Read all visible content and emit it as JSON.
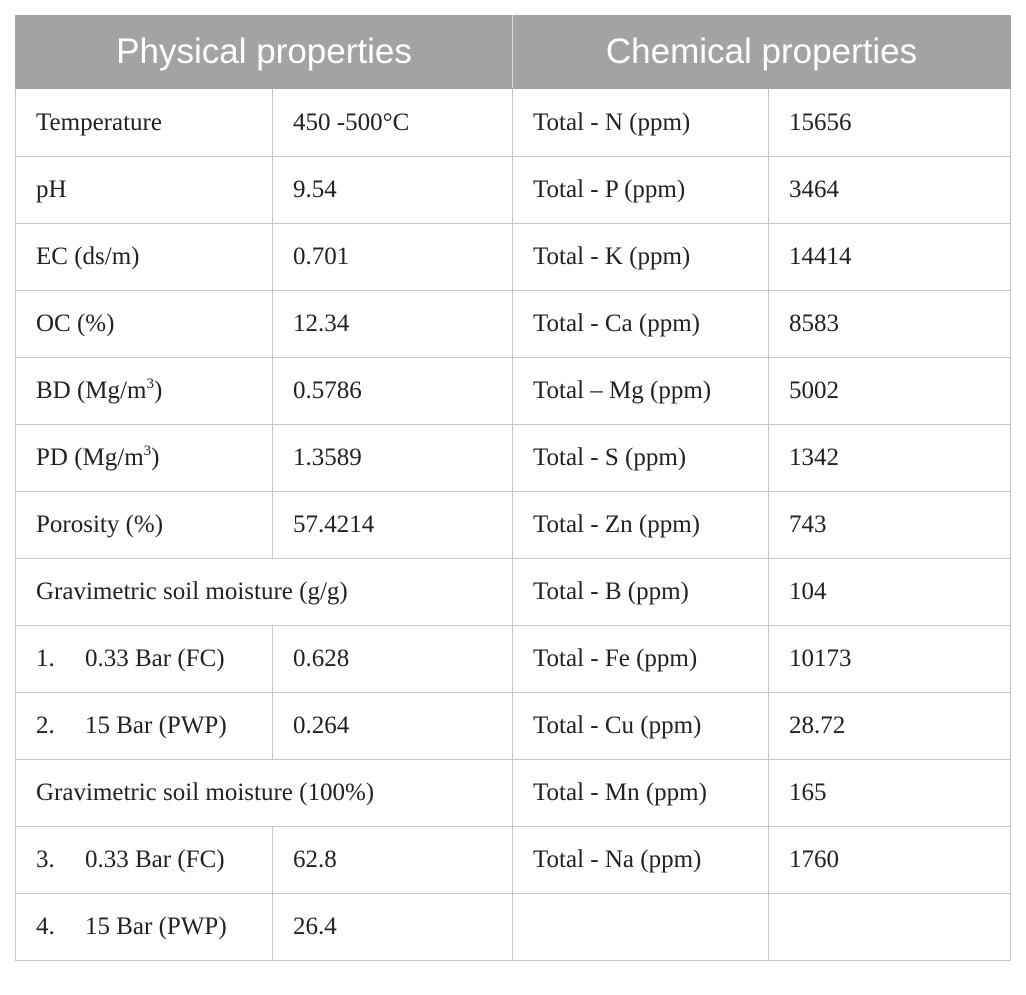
{
  "headers": {
    "physical": "Physical properties",
    "chemical": "Chemical properties"
  },
  "physical": {
    "temperature": {
      "label": "Temperature",
      "value": "450 -500°C"
    },
    "ph": {
      "label": "pH",
      "value": "9.54"
    },
    "ec": {
      "label": "EC (ds/m)",
      "value": "0.701"
    },
    "oc": {
      "label": "OC (%)",
      "value": "12.34"
    },
    "bd": {
      "label": "BD (Mg/m",
      "sup": "3",
      "close": ")",
      "value": "0.5786"
    },
    "pd": {
      "label": "PD (Mg/m",
      "sup": "3",
      "close": ")",
      "value": "1.3589"
    },
    "porosity": {
      "label": "Porosity (%)",
      "value": "57.4214"
    },
    "grav_gg": {
      "label": "Gravimetric soil moisture (g/g)"
    },
    "gg_1": {
      "num": "1.",
      "label": "0.33 Bar (FC)",
      "value": "0.628"
    },
    "gg_2": {
      "num": "2.",
      "label": "15 Bar (PWP)",
      "value": "0.264"
    },
    "grav_pct": {
      "label": "Gravimetric soil moisture (100%)"
    },
    "pct_3": {
      "num": "3.",
      "label": "0.33 Bar (FC)",
      "value": "62.8"
    },
    "pct_4": {
      "num": "4.",
      "label": "15 Bar (PWP)",
      "value": "26.4"
    }
  },
  "chemical": [
    {
      "label": "Total - N (ppm)",
      "value": "15656"
    },
    {
      "label": "Total - P (ppm)",
      "value": "3464"
    },
    {
      "label": "Total - K (ppm)",
      "value": "14414"
    },
    {
      "label": "Total - Ca (ppm)",
      "value": "8583"
    },
    {
      "label": "Total – Mg (ppm)",
      "value": "5002"
    },
    {
      "label": "Total - S (ppm)",
      "value": "1342"
    },
    {
      "label": "Total - Zn (ppm)",
      "value": "743"
    },
    {
      "label": "Total - B (ppm)",
      "value": "104"
    },
    {
      "label": "Total - Fe (ppm)",
      "value": "10173"
    },
    {
      "label": "Total - Cu (ppm)",
      "value": "28.72"
    },
    {
      "label": "Total - Mn (ppm)",
      "value": "165"
    },
    {
      "label": "Total - Na (ppm)",
      "value": "1760"
    }
  ]
}
